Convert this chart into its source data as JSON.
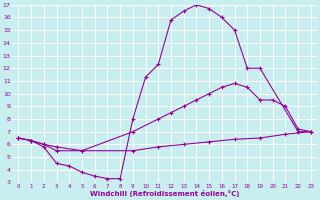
{
  "background_color": "#c8eef0",
  "line_color": "#990099",
  "grid_color": "#ffffff",
  "xlabel": "Windchill (Refroidissement éolien,°C)",
  "xlim": [
    -0.5,
    23.5
  ],
  "ylim": [
    3,
    17
  ],
  "xticks": [
    0,
    1,
    2,
    3,
    4,
    5,
    6,
    7,
    8,
    9,
    10,
    11,
    12,
    13,
    14,
    15,
    16,
    17,
    18,
    19,
    20,
    21,
    22,
    23
  ],
  "yticks": [
    3,
    4,
    5,
    6,
    7,
    8,
    9,
    10,
    11,
    12,
    13,
    14,
    15,
    16,
    17
  ],
  "series": [
    {
      "x": [
        0,
        1,
        2,
        3,
        4,
        5,
        6,
        7,
        8,
        9,
        10,
        11,
        12,
        13,
        14,
        15,
        16,
        17,
        18,
        19,
        22,
        23
      ],
      "y": [
        6.5,
        6.3,
        5.8,
        4.5,
        4.3,
        3.8,
        3.5,
        3.3,
        3.3,
        8.0,
        11.3,
        12.3,
        15.8,
        16.5,
        17.0,
        16.7,
        16.0,
        15.0,
        12.0,
        12.0,
        7.0,
        7.0
      ]
    },
    {
      "x": [
        0,
        1,
        2,
        3,
        5,
        9,
        11,
        12,
        13,
        14,
        15,
        16,
        17,
        18,
        19,
        20,
        21,
        22,
        23
      ],
      "y": [
        6.5,
        6.3,
        6.0,
        5.5,
        5.5,
        7.0,
        8.0,
        8.5,
        9.0,
        9.5,
        10.0,
        10.5,
        10.8,
        10.5,
        9.5,
        9.5,
        9.0,
        7.2,
        7.0
      ]
    },
    {
      "x": [
        0,
        1,
        2,
        3,
        5,
        9,
        11,
        13,
        15,
        17,
        19,
        21,
        23
      ],
      "y": [
        6.5,
        6.3,
        6.0,
        5.8,
        5.5,
        5.5,
        5.8,
        6.0,
        6.2,
        6.4,
        6.5,
        6.8,
        7.0
      ]
    }
  ]
}
